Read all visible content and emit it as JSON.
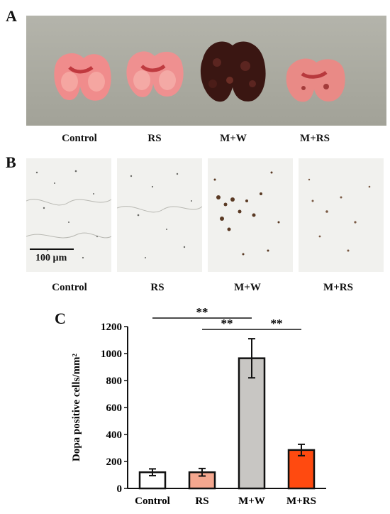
{
  "panels": {
    "a": {
      "letter": "A",
      "captions": [
        "Control",
        "RS",
        "M+W",
        "M+RS"
      ]
    },
    "b": {
      "letter": "B",
      "captions": [
        "Control",
        "RS",
        "M+W",
        "M+RS"
      ],
      "scale_bar": "100 µm"
    },
    "c": {
      "letter": "C"
    }
  },
  "chart_data": {
    "type": "bar",
    "categories": [
      "Control",
      "RS",
      "M+W",
      "M+RS"
    ],
    "values": [
      120,
      120,
      965,
      285
    ],
    "errors": [
      25,
      28,
      145,
      42
    ],
    "colors": [
      "#ffffff",
      "#f4a78f",
      "#c8c6c3",
      "#ff4a10"
    ],
    "ylabel": "Dopa positive cells/mm²",
    "ylim": [
      0,
      1200
    ],
    "yticks": [
      0,
      200,
      400,
      600,
      800,
      1000,
      1200
    ],
    "significance": [
      {
        "from": "Control",
        "to": "M+W",
        "label": "**"
      },
      {
        "from": "RS",
        "to": "M+W",
        "label": "**"
      },
      {
        "from": "M+W",
        "to": "M+RS",
        "label": "**"
      }
    ],
    "grid": false
  }
}
